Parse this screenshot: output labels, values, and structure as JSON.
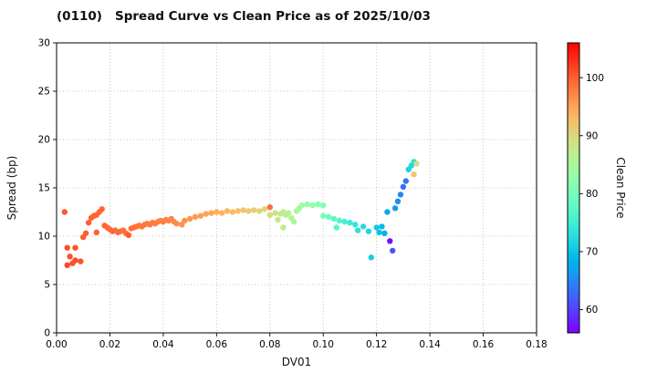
{
  "chart_data": {
    "type": "scatter",
    "title": "(0110)   Spread Curve vs Clean Price as of 2025/10/03",
    "xlabel": "DV01",
    "ylabel": "Spread (bp)",
    "colorbar_label": "Clean Price",
    "xlim": [
      0.0,
      0.18
    ],
    "ylim": [
      0,
      30
    ],
    "grid": true,
    "colormap": "rainbow",
    "color_range": [
      56,
      106
    ],
    "xtick_values": [
      0.0,
      0.02,
      0.04,
      0.06,
      0.08,
      0.1,
      0.12,
      0.14,
      0.16,
      0.18
    ],
    "xtick_labels": [
      "0.00",
      "0.02",
      "0.04",
      "0.06",
      "0.08",
      "0.10",
      "0.12",
      "0.14",
      "0.16",
      "0.18"
    ],
    "ytick_values": [
      0,
      5,
      10,
      15,
      20,
      25,
      30
    ],
    "ytick_labels": [
      "0",
      "5",
      "10",
      "15",
      "20",
      "25",
      "30"
    ],
    "colorbar_tick_values": [
      60,
      70,
      80,
      90,
      100
    ],
    "colorbar_tick_labels": [
      "60",
      "70",
      "80",
      "90",
      "100"
    ],
    "points": [
      [
        0.003,
        12.5,
        100.3
      ],
      [
        0.004,
        8.8,
        101.0
      ],
      [
        0.005,
        7.9,
        101.2
      ],
      [
        0.004,
        7.0,
        101.4
      ],
      [
        0.006,
        7.2,
        101.0
      ],
      [
        0.007,
        8.8,
        100.8
      ],
      [
        0.007,
        7.5,
        101.1
      ],
      [
        0.009,
        7.4,
        100.9
      ],
      [
        0.01,
        9.9,
        100.2
      ],
      [
        0.011,
        10.3,
        100.0
      ],
      [
        0.012,
        11.4,
        99.9
      ],
      [
        0.013,
        11.9,
        99.8
      ],
      [
        0.014,
        12.1,
        99.7
      ],
      [
        0.015,
        10.4,
        99.8
      ],
      [
        0.015,
        12.2,
        99.6
      ],
      [
        0.016,
        12.5,
        99.5
      ],
      [
        0.017,
        12.8,
        99.5
      ],
      [
        0.018,
        11.1,
        99.6
      ],
      [
        0.019,
        10.9,
        99.5
      ],
      [
        0.02,
        10.7,
        99.4
      ],
      [
        0.021,
        10.5,
        99.3
      ],
      [
        0.022,
        10.6,
        99.2
      ],
      [
        0.023,
        10.4,
        99.2
      ],
      [
        0.024,
        10.5,
        99.1
      ],
      [
        0.025,
        10.6,
        99.0
      ],
      [
        0.026,
        10.3,
        98.9
      ],
      [
        0.027,
        10.1,
        100.1
      ],
      [
        0.028,
        10.8,
        98.8
      ],
      [
        0.029,
        10.9,
        98.7
      ],
      [
        0.03,
        11.0,
        98.6
      ],
      [
        0.031,
        11.1,
        98.5
      ],
      [
        0.032,
        11.0,
        98.4
      ],
      [
        0.033,
        11.2,
        98.3
      ],
      [
        0.034,
        11.3,
        98.2
      ],
      [
        0.035,
        11.2,
        98.1
      ],
      [
        0.036,
        11.4,
        98.0
      ],
      [
        0.037,
        11.3,
        97.9
      ],
      [
        0.038,
        11.5,
        97.8
      ],
      [
        0.039,
        11.6,
        97.7
      ],
      [
        0.04,
        11.5,
        97.6
      ],
      [
        0.041,
        11.7,
        97.5
      ],
      [
        0.042,
        11.6,
        97.4
      ],
      [
        0.043,
        11.8,
        97.3
      ],
      [
        0.044,
        11.5,
        97.1
      ],
      [
        0.045,
        11.3,
        96.8
      ],
      [
        0.047,
        11.2,
        96.5
      ],
      [
        0.048,
        11.6,
        96.3
      ],
      [
        0.05,
        11.8,
        96.0
      ],
      [
        0.052,
        12.0,
        95.7
      ],
      [
        0.054,
        12.1,
        95.4
      ],
      [
        0.056,
        12.3,
        95.0
      ],
      [
        0.058,
        12.4,
        94.6
      ],
      [
        0.06,
        12.5,
        94.2
      ],
      [
        0.062,
        12.4,
        93.8
      ],
      [
        0.064,
        12.6,
        93.4
      ],
      [
        0.066,
        12.5,
        93.0
      ],
      [
        0.068,
        12.6,
        92.5
      ],
      [
        0.07,
        12.7,
        92.0
      ],
      [
        0.072,
        12.6,
        91.5
      ],
      [
        0.074,
        12.7,
        91.0
      ],
      [
        0.076,
        12.6,
        90.4
      ],
      [
        0.078,
        12.8,
        89.8
      ],
      [
        0.08,
        13.0,
        99.0
      ],
      [
        0.08,
        12.2,
        89.2
      ],
      [
        0.082,
        12.4,
        88.6
      ],
      [
        0.083,
        11.7,
        88.2
      ],
      [
        0.084,
        12.3,
        87.8
      ],
      [
        0.085,
        10.9,
        87.5
      ],
      [
        0.085,
        12.5,
        87.2
      ],
      [
        0.086,
        12.2,
        86.8
      ],
      [
        0.087,
        12.4,
        86.4
      ],
      [
        0.088,
        11.9,
        86.0
      ],
      [
        0.089,
        11.5,
        85.6
      ],
      [
        0.09,
        12.6,
        85.2
      ],
      [
        0.091,
        12.9,
        84.7
      ],
      [
        0.092,
        13.2,
        84.2
      ],
      [
        0.094,
        13.3,
        83.4
      ],
      [
        0.096,
        13.2,
        82.6
      ],
      [
        0.098,
        13.3,
        81.8
      ],
      [
        0.1,
        13.2,
        81.0
      ],
      [
        0.1,
        12.1,
        79.5
      ],
      [
        0.102,
        12.0,
        78.5
      ],
      [
        0.104,
        11.8,
        77.5
      ],
      [
        0.105,
        10.9,
        77.0
      ],
      [
        0.106,
        11.6,
        76.5
      ],
      [
        0.108,
        11.5,
        75.5
      ],
      [
        0.11,
        11.4,
        74.5
      ],
      [
        0.112,
        11.2,
        73.5
      ],
      [
        0.113,
        10.6,
        73.0
      ],
      [
        0.115,
        11.0,
        72.3
      ],
      [
        0.117,
        10.5,
        71.6
      ],
      [
        0.118,
        7.8,
        71.0
      ],
      [
        0.12,
        10.9,
        70.3
      ],
      [
        0.121,
        10.4,
        69.6
      ],
      [
        0.122,
        11.0,
        69.0
      ],
      [
        0.123,
        10.3,
        68.2
      ],
      [
        0.125,
        9.5,
        57.0
      ],
      [
        0.126,
        8.5,
        61.5
      ],
      [
        0.124,
        12.5,
        67.5
      ],
      [
        0.127,
        12.9,
        66.5
      ],
      [
        0.128,
        13.6,
        65.5
      ],
      [
        0.129,
        14.3,
        64.5
      ],
      [
        0.13,
        15.1,
        63.0
      ],
      [
        0.131,
        15.7,
        63.8
      ],
      [
        0.132,
        16.9,
        71.5
      ],
      [
        0.133,
        17.3,
        72.0
      ],
      [
        0.134,
        17.7,
        73.0
      ],
      [
        0.134,
        16.4,
        92.0
      ],
      [
        0.135,
        17.5,
        89.0
      ]
    ]
  }
}
